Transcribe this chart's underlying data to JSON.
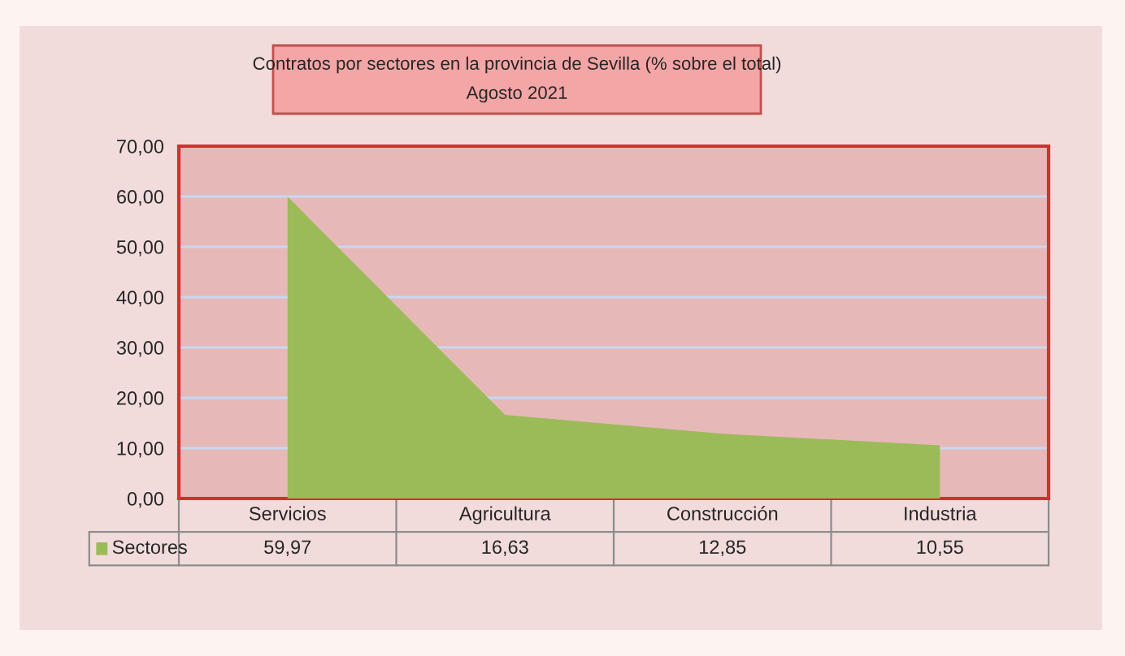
{
  "chart_data": {
    "type": "area",
    "title": "Contratos por sectores en la provincia de Sevilla (% sobre el total)",
    "subtitle": "Agosto 2021",
    "categories": [
      "Servicios",
      "Agricultura",
      "Construcción",
      "Industria"
    ],
    "series": [
      {
        "name": "Sectores",
        "color": "#9bbb59",
        "values": [
          59.97,
          16.63,
          12.85,
          10.55
        ],
        "value_labels": [
          "59,97",
          "16,63",
          "12,85",
          "10,55"
        ]
      }
    ],
    "ylim": [
      0,
      70
    ],
    "yticks": [
      {
        "value": 0,
        "label": "0,00"
      },
      {
        "value": 10,
        "label": "10,00"
      },
      {
        "value": 20,
        "label": "20,00"
      },
      {
        "value": 30,
        "label": "30,00"
      },
      {
        "value": 40,
        "label": "40,00"
      },
      {
        "value": 50,
        "label": "50,00"
      },
      {
        "value": 60,
        "label": "60,00"
      },
      {
        "value": 70,
        "label": "70,00"
      }
    ],
    "grid": "y"
  }
}
